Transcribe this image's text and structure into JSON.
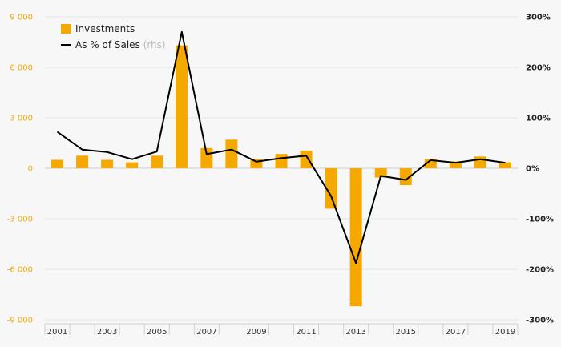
{
  "chart_data": {
    "type": "bar+line",
    "categories": [
      "2001",
      "2002",
      "2003",
      "2004",
      "2005",
      "2006",
      "2007",
      "2008",
      "2009",
      "2010",
      "2011",
      "2012",
      "2013",
      "2014",
      "2015",
      "2016",
      "2017",
      "2018",
      "2019"
    ],
    "x_tick_labels": [
      "2001",
      "2003",
      "2005",
      "2007",
      "2009",
      "2011",
      "2013",
      "2015",
      "2017",
      "2019"
    ],
    "series": [
      {
        "name": "Investments",
        "axis": "left",
        "kind": "bar",
        "color": "#f5a800",
        "values": [
          500,
          750,
          500,
          350,
          750,
          7300,
          1200,
          1700,
          550,
          850,
          1050,
          -2400,
          -8200,
          -550,
          -1000,
          550,
          400,
          700,
          350
        ]
      },
      {
        "name": "As % of Sales",
        "name_suffix": "(rhs)",
        "axis": "right",
        "kind": "line",
        "color": "#000000",
        "values": [
          72,
          37,
          32,
          18,
          33,
          270,
          28,
          37,
          13,
          20,
          25,
          -55,
          -188,
          -15,
          -23,
          16,
          11,
          18,
          11
        ]
      }
    ],
    "left_axis": {
      "ylim": [
        -9000,
        9000
      ],
      "ticks": [
        9000,
        6000,
        3000,
        0,
        -3000,
        -6000,
        -9000
      ],
      "tick_labels": [
        "9 000",
        "6 000",
        "3 000",
        "0",
        "-3 000",
        "-6 000",
        "-9 000"
      ]
    },
    "right_axis": {
      "ylim": [
        -300,
        300
      ],
      "ticks": [
        300,
        200,
        100,
        0,
        -100,
        -200,
        -300
      ],
      "tick_labels": [
        "300%",
        "200%",
        "100%",
        "0%",
        "-100%",
        "-200%",
        "-300%"
      ]
    },
    "legend_position": "top-left",
    "grid": true
  }
}
